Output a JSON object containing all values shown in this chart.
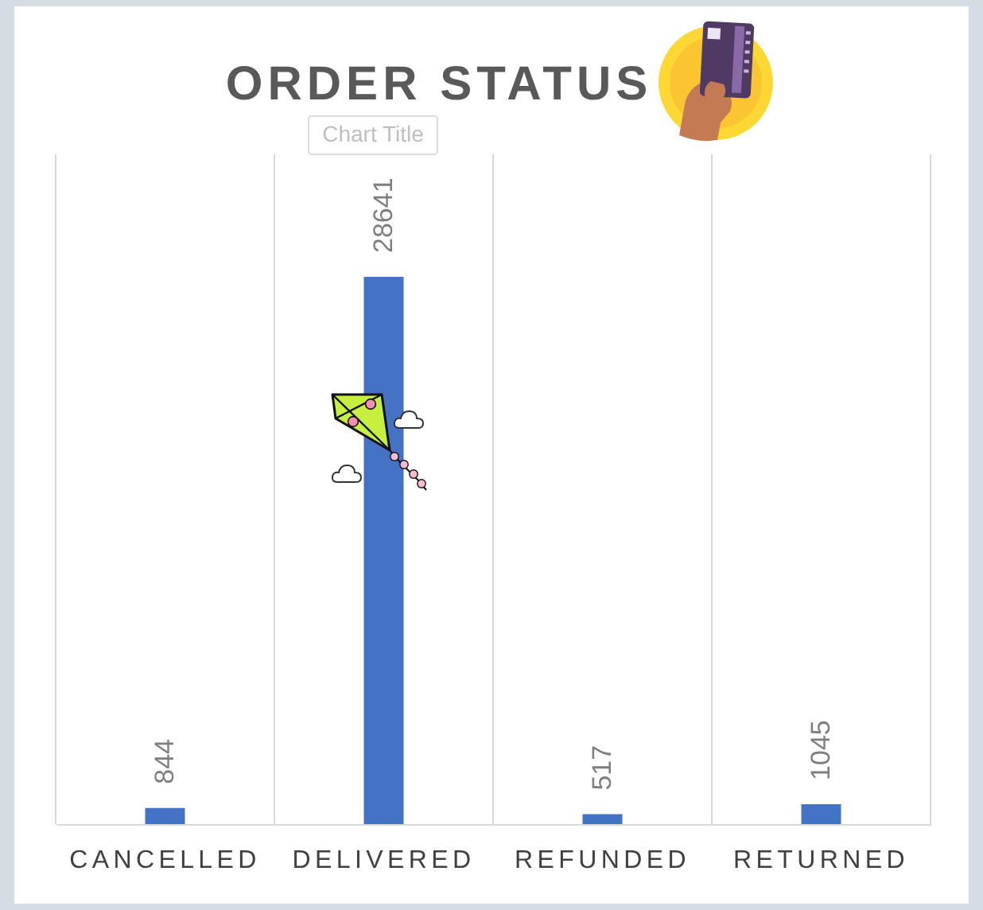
{
  "chart_data": {
    "type": "bar",
    "title": "ORDER STATUS",
    "annotations": [
      "Chart Title"
    ],
    "categories": [
      "CANCELLED",
      "DELIVERED",
      "REFUNDED",
      "RETURNED"
    ],
    "values": [
      844,
      28641,
      517,
      1045
    ],
    "color": "#4472c4",
    "data_labels": true,
    "grid": "x",
    "tick_labels": "x"
  }
}
